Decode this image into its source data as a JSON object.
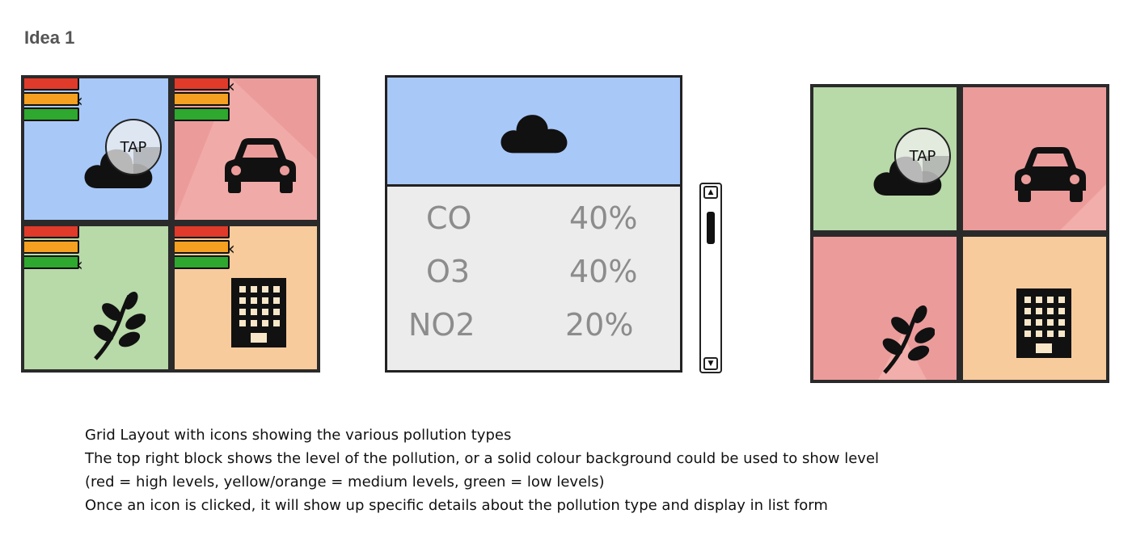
{
  "title": "Idea 1",
  "colors": {
    "blue": "#a8c8f8",
    "red": "#ec9b9b",
    "green": "#b8d9a8",
    "orange": "#f8cb9c",
    "level_high": "#e03a2a",
    "level_medium": "#f5a020",
    "level_low": "#2ea82e",
    "panel_bg": "#ececec",
    "panel_text": "#8c8c8c"
  },
  "grid_left": {
    "cells": [
      {
        "icon": "cloud-icon",
        "bg": "blue",
        "tap_label": "TAP"
      },
      {
        "icon": "car-icon",
        "bg": "red"
      },
      {
        "icon": "leaf-icon",
        "bg": "green"
      },
      {
        "icon": "building-icon",
        "bg": "orange"
      }
    ]
  },
  "detail": {
    "header_icon": "cloud-icon",
    "rows": [
      {
        "name": "CO",
        "value": "40%"
      },
      {
        "name": "O3",
        "value": "40%"
      },
      {
        "name": "NO2",
        "value": "20%"
      }
    ]
  },
  "grid_right": {
    "cells": [
      {
        "icon": "cloud-icon",
        "bg": "green",
        "tap_label": "TAP"
      },
      {
        "icon": "car-icon",
        "bg": "red"
      },
      {
        "icon": "leaf-icon",
        "bg": "red"
      },
      {
        "icon": "building-icon",
        "bg": "orange"
      }
    ]
  },
  "notes": [
    "Grid Layout with icons showing the various pollution types",
    "The top right block shows the level of the pollution, or a solid colour background could be used to show level",
    "(red = high levels, yellow/orange = medium levels, green = low levels)",
    "Once an icon is clicked, it will show up specific details about the pollution type and display in list form"
  ]
}
